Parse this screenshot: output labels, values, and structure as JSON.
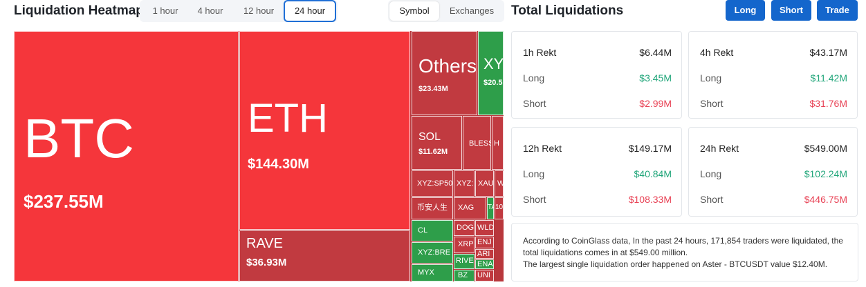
{
  "header": {
    "title": "Liquidation Heatmap",
    "time_tabs": [
      "1 hour",
      "4 hour",
      "12 hour",
      "24 hour"
    ],
    "active_time_tab": 3,
    "view_tabs": [
      "Symbol",
      "Exchanges"
    ],
    "active_view_tab": 0
  },
  "summary": {
    "title": "Total Liquidations",
    "buttons": [
      "Long",
      "Short",
      "Trade"
    ],
    "cards": [
      {
        "rows": [
          [
            "1h Rekt",
            "$6.44M"
          ],
          [
            "Long",
            "$3.45M"
          ],
          [
            "Short",
            "$2.99M"
          ]
        ]
      },
      {
        "rows": [
          [
            "4h Rekt",
            "$43.17M"
          ],
          [
            "Long",
            "$11.42M"
          ],
          [
            "Short",
            "$31.76M"
          ]
        ]
      },
      {
        "rows": [
          [
            "12h Rekt",
            "$149.17M"
          ],
          [
            "Long",
            "$40.84M"
          ],
          [
            "Short",
            "$108.33M"
          ]
        ]
      },
      {
        "rows": [
          [
            "24h Rekt",
            "$549.00M"
          ],
          [
            "Long",
            "$102.24M"
          ],
          [
            "Short",
            "$446.75M"
          ]
        ]
      }
    ],
    "note": [
      "According to CoinGlass data, In the past 24 hours, 171,854 traders were liquidated, the total liquidations comes in at $549.00 million.",
      "The largest single liquidation order happened on Aster - BTCUSDT value $12.40M."
    ]
  },
  "heatmap": {
    "tiles": [
      {
        "label": "BTC",
        "value": "$237.55M",
        "color": "red"
      },
      {
        "label": "ETH",
        "value": "$144.30M",
        "color": "red"
      },
      {
        "label": "RAVE",
        "value": "$36.93M",
        "color": "dark-red"
      },
      {
        "label": "Others",
        "value": "$23.43M",
        "color": "dark-red"
      },
      {
        "label": "XYZ",
        "value": "$20.5",
        "color": "green"
      },
      {
        "label": "SOL",
        "value": "$11.62M",
        "color": "dark-red"
      },
      {
        "label": "BLESS",
        "color": "dark-red"
      },
      {
        "label": "H",
        "color": "dark-red"
      },
      {
        "label": "XYZ:SP50",
        "color": "dark-red"
      },
      {
        "label": "XYZ:",
        "color": "dark-red"
      },
      {
        "label": "XAU",
        "color": "dark-red"
      },
      {
        "label": "W",
        "color": "dark-red"
      },
      {
        "label": "币安人生",
        "color": "dark-red"
      },
      {
        "label": "XAG",
        "color": "dark-red"
      },
      {
        "label": "TA",
        "color": "green"
      },
      {
        "label": "10",
        "color": "dark-red"
      },
      {
        "label": "CL",
        "color": "green"
      },
      {
        "label": "XYZ:BRE",
        "color": "green"
      },
      {
        "label": "MYX",
        "color": "green"
      },
      {
        "label": "DOGE",
        "color": "dark-red"
      },
      {
        "label": "XRP",
        "color": "dark-red"
      },
      {
        "label": "RIVE",
        "color": "green"
      },
      {
        "label": "BZ",
        "color": "green"
      },
      {
        "label": "WLD",
        "color": "dark-red"
      },
      {
        "label": "ENJ",
        "color": "dark-red"
      },
      {
        "label": "ARI",
        "color": "dark-red"
      },
      {
        "label": "ENA",
        "color": "green"
      },
      {
        "label": "UNI",
        "color": "dark-red"
      }
    ]
  }
}
